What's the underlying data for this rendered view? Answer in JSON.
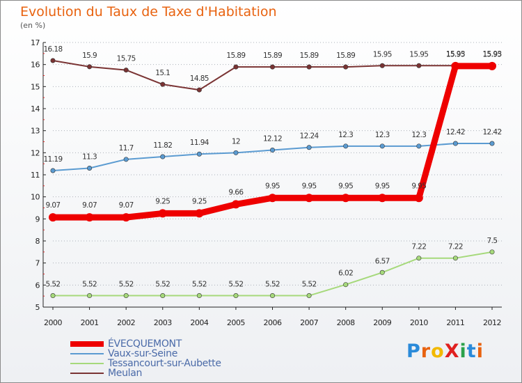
{
  "header": {
    "title": "Evolution du Taux de Taxe d'Habitation",
    "subtitle": "(en %)"
  },
  "logo": {
    "text": "ProXiti",
    "letters": [
      {
        "ch": "P",
        "color": "#2a8ad9"
      },
      {
        "ch": "r",
        "color": "#e8620f"
      },
      {
        "ch": "o",
        "color": "#f2b900"
      },
      {
        "ch": "X",
        "color": "#e02020"
      },
      {
        "ch": "i",
        "color": "#2aa14a"
      },
      {
        "ch": "t",
        "color": "#2a8ad9"
      },
      {
        "ch": "i",
        "color": "#e8620f"
      }
    ]
  },
  "chart_data": {
    "type": "line",
    "xlabel": "",
    "ylabel": "",
    "x": [
      2000,
      2001,
      2002,
      2003,
      2004,
      2005,
      2006,
      2007,
      2008,
      2009,
      2010,
      2011,
      2012
    ],
    "ylim": [
      5,
      17
    ],
    "yticks": [
      5,
      6,
      7,
      8,
      9,
      10,
      11,
      12,
      13,
      14,
      15,
      16,
      17
    ],
    "grid": "horizontal dotted",
    "legend_position": "bottom-left",
    "series": [
      {
        "name": "ÉVECQUEMONT",
        "color": "#ee0000",
        "values": [
          9.07,
          9.07,
          9.07,
          9.25,
          9.25,
          9.66,
          9.95,
          9.95,
          9.95,
          9.95,
          9.95,
          15.93,
          15.93
        ],
        "labels": [
          "9.07",
          "9.07",
          "9.07",
          "9.25",
          "9.25",
          "9.66",
          "9.95",
          "9.95",
          "9.95",
          "9.95",
          "9.95",
          "15.93",
          "15.93"
        ]
      },
      {
        "name": "Vaux-sur-Seine",
        "color": "#5b9bd1",
        "values": [
          11.19,
          11.3,
          11.7,
          11.82,
          11.94,
          12,
          12.12,
          12.24,
          12.3,
          12.3,
          12.3,
          12.42,
          12.42
        ],
        "labels": [
          "11.19",
          "11.3",
          "11.7",
          "11.82",
          "11.94",
          "12",
          "12.12",
          "12.24",
          "12.3",
          "12.3",
          "12.3",
          "12.42",
          "12.42"
        ]
      },
      {
        "name": "Tessancourt-sur-Aubette",
        "color": "#a6d97b",
        "values": [
          5.52,
          5.52,
          5.52,
          5.52,
          5.52,
          5.52,
          5.52,
          5.52,
          6.02,
          6.57,
          7.22,
          7.22,
          7.5
        ],
        "labels": [
          "5.52",
          "5.52",
          "5.52",
          "5.52",
          "5.52",
          "5.52",
          "5.52",
          "5.52",
          "6.02",
          "6.57",
          "7.22",
          "7.22",
          "7.5"
        ]
      },
      {
        "name": "Meulan",
        "color": "#7a3333",
        "values": [
          16.18,
          15.9,
          15.75,
          15.1,
          14.85,
          15.89,
          15.89,
          15.89,
          15.89,
          15.95,
          15.95,
          15.95,
          15.95
        ],
        "labels": [
          "16.18",
          "15.9",
          "15.75",
          "15.1",
          "14.85",
          "15.89",
          "15.89",
          "15.89",
          "15.89",
          "15.95",
          "15.95",
          "15.95",
          "15.95"
        ]
      }
    ]
  }
}
